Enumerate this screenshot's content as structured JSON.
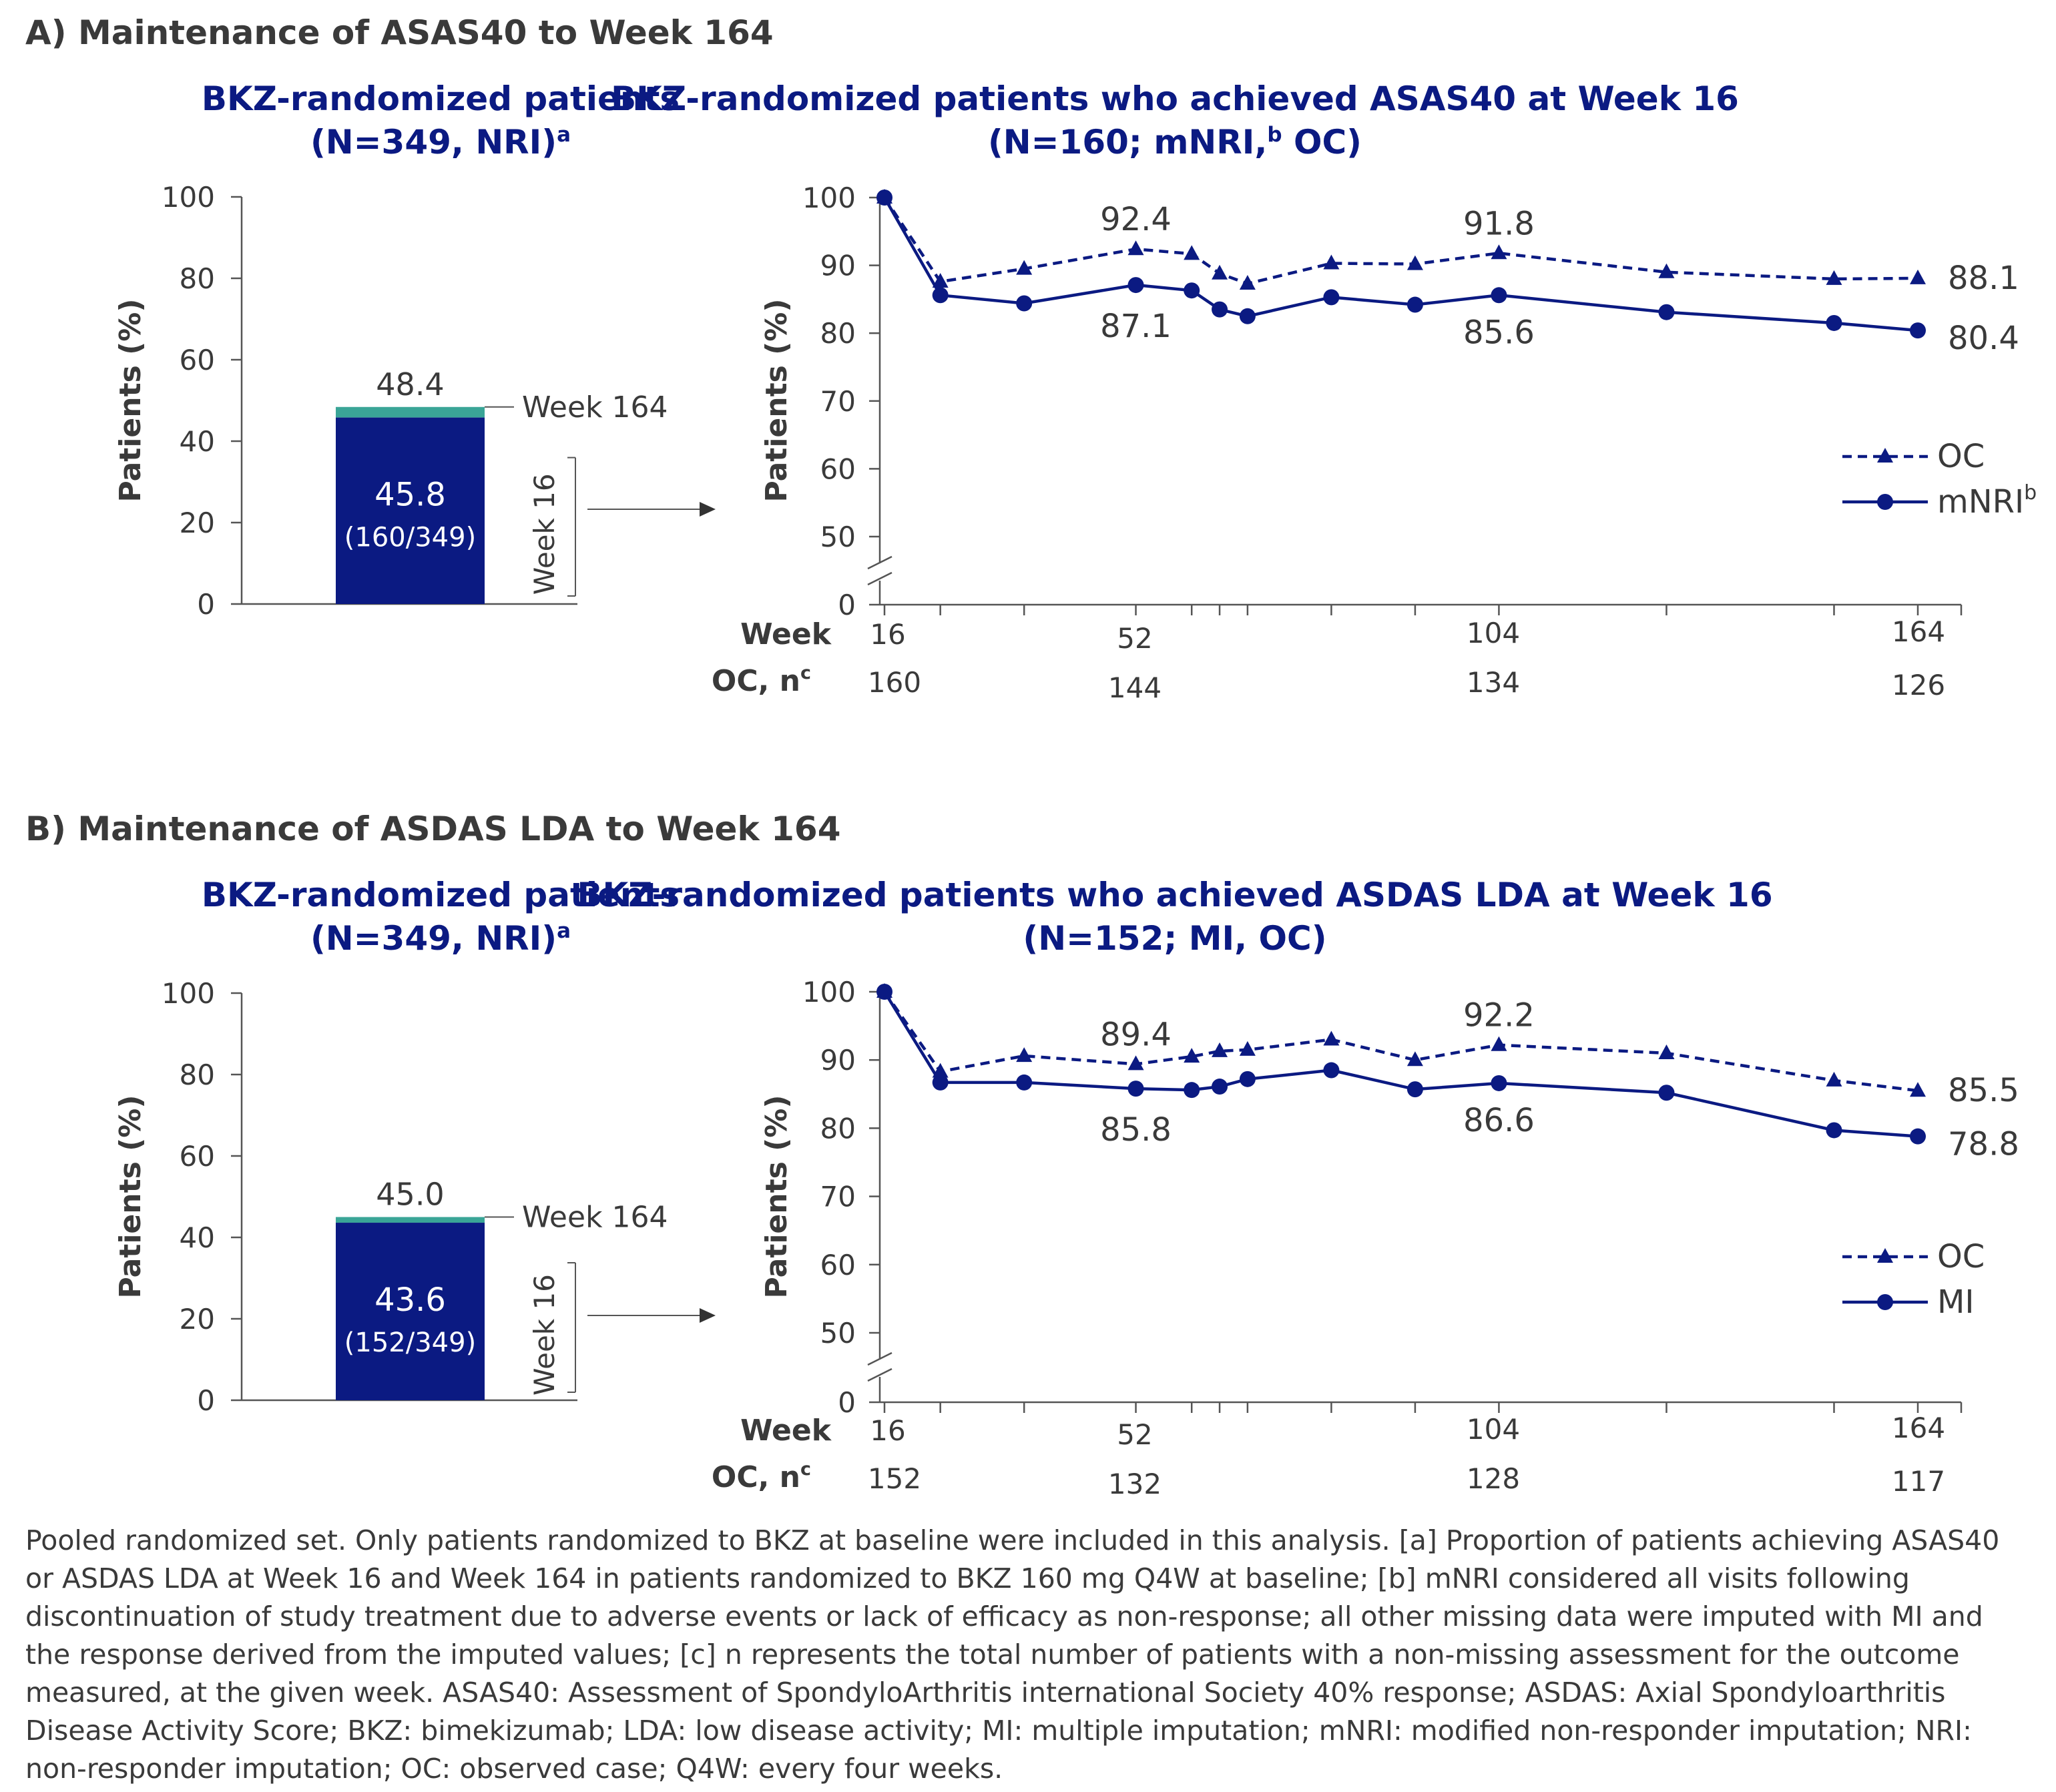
{
  "colors": {
    "navy": "#0b1a82",
    "teal": "#3aa597",
    "text": "#3a3a3a",
    "axis": "#555555"
  },
  "panels": [
    {
      "section_title": "A) Maintenance of ASAS40 to Week 164",
      "bar": {
        "title_line1": "BKZ-randomized patients",
        "title_line2": "(N=349, NRI)",
        "title_sup": "a",
        "ylabel": "Patients (%)",
        "yticks": [
          "100",
          "80",
          "60",
          "40",
          "20",
          "0"
        ],
        "ylim": [
          0,
          100
        ],
        "week16_value": 45.8,
        "week164_value": 48.4,
        "week16_label": "45.8",
        "week16_fraction": "(160/349)",
        "week164_label": "48.4",
        "week164_tag": "Week 164",
        "week16_tag": "Week 16"
      },
      "line": {
        "title_line1": "BKZ-randomized patients who achieved ASAS40 at Week 16",
        "title_line2a": "(N=160; mNRI,",
        "title_sup": "b",
        "title_line2b": " OC)",
        "ylabel": "Patients (%)",
        "yticks": [
          "100",
          "90",
          "80",
          "70",
          "60",
          "50",
          "0"
        ],
        "week_label": "Week",
        "week_ticks": [
          "16",
          "52",
          "104",
          "164"
        ],
        "oc_n_label": "OC, n",
        "oc_n_sup": "c",
        "oc_n_values": [
          "160",
          "144",
          "134",
          "126"
        ],
        "legend": [
          {
            "label": "OC",
            "sup": ""
          },
          {
            "label": "mNRI",
            "sup": "b"
          }
        ],
        "annotations": {
          "oc_52": "92.4",
          "oc_104": "91.8",
          "oc_164": "88.1",
          "main_52": "87.1",
          "main_104": "85.6",
          "main_164": "80.4"
        }
      }
    },
    {
      "section_title": "B) Maintenance of ASDAS LDA to Week 164",
      "bar": {
        "title_line1": "BKZ-randomized patients",
        "title_line2": "(N=349, NRI)",
        "title_sup": "a",
        "ylabel": "Patients (%)",
        "yticks": [
          "100",
          "80",
          "60",
          "40",
          "20",
          "0"
        ],
        "ylim": [
          0,
          100
        ],
        "week16_value": 43.6,
        "week164_value": 45.0,
        "week16_label": "43.6",
        "week16_fraction": "(152/349)",
        "week164_label": "45.0",
        "week164_tag": "Week 164",
        "week16_tag": "Week 16"
      },
      "line": {
        "title_line1": "BKZ-randomized patients who achieved ASDAS LDA at Week 16",
        "title_line2a": "(N=152; MI, OC)",
        "title_sup": "",
        "title_line2b": "",
        "ylabel": "Patients (%)",
        "yticks": [
          "100",
          "90",
          "80",
          "70",
          "60",
          "50",
          "0"
        ],
        "week_label": "Week",
        "week_ticks": [
          "16",
          "52",
          "104",
          "164"
        ],
        "oc_n_label": "OC, n",
        "oc_n_sup": "c",
        "oc_n_values": [
          "152",
          "132",
          "128",
          "117"
        ],
        "legend": [
          {
            "label": "OC",
            "sup": ""
          },
          {
            "label": "MI",
            "sup": ""
          }
        ],
        "annotations": {
          "oc_52": "89.4",
          "oc_104": "92.2",
          "oc_164": "85.5",
          "main_52": "85.8",
          "main_104": "86.6",
          "main_164": "78.8"
        }
      }
    }
  ],
  "chart_data": [
    {
      "type": "bar",
      "title": "BKZ-randomized patients (N=349, NRI)a",
      "ylabel": "Patients (%)",
      "ylim": [
        0,
        100
      ],
      "categories": [
        "Week 16",
        "Week 164"
      ],
      "values": [
        45.8,
        48.4
      ]
    },
    {
      "type": "line",
      "title": "BKZ-randomized patients who achieved ASAS40 at Week 16 (N=160; mNRI,b OC)",
      "xlabel": "Week",
      "ylabel": "Patients (%)",
      "ylim": [
        0,
        100
      ],
      "x_ticks": [
        16,
        52,
        104,
        164
      ],
      "legend_position": "right",
      "series": [
        {
          "name": "OC",
          "style": "dashed-triangle",
          "x": [
            16,
            24,
            36,
            52,
            60,
            64,
            68,
            80,
            92,
            104,
            128,
            152,
            164
          ],
          "values": [
            100,
            87.6,
            89.5,
            92.4,
            91.7,
            88.8,
            87.3,
            90.3,
            90.2,
            91.8,
            89.0,
            88.0,
            88.1
          ]
        },
        {
          "name": "mNRI",
          "style": "solid-circle",
          "x": [
            16,
            24,
            36,
            52,
            60,
            64,
            68,
            80,
            92,
            104,
            128,
            152,
            164
          ],
          "values": [
            100,
            85.6,
            84.4,
            87.1,
            86.3,
            83.5,
            82.5,
            85.3,
            84.2,
            85.6,
            83.1,
            81.5,
            80.4
          ]
        }
      ],
      "oc_n": {
        "x": [
          16,
          52,
          104,
          164
        ],
        "values": [
          160,
          144,
          134,
          126
        ]
      }
    },
    {
      "type": "bar",
      "title": "BKZ-randomized patients (N=349, NRI)a",
      "ylabel": "Patients (%)",
      "ylim": [
        0,
        100
      ],
      "categories": [
        "Week 16",
        "Week 164"
      ],
      "values": [
        43.6,
        45.0
      ]
    },
    {
      "type": "line",
      "title": "BKZ-randomized patients who achieved ASDAS LDA at Week 16 (N=152; MI, OC)",
      "xlabel": "Week",
      "ylabel": "Patients (%)",
      "ylim": [
        0,
        100
      ],
      "x_ticks": [
        16,
        52,
        104,
        164
      ],
      "legend_position": "right",
      "series": [
        {
          "name": "OC",
          "style": "dashed-triangle",
          "x": [
            16,
            24,
            36,
            52,
            60,
            64,
            68,
            80,
            92,
            104,
            128,
            152,
            164
          ],
          "values": [
            100,
            88.3,
            90.6,
            89.4,
            90.5,
            91.3,
            91.5,
            93.0,
            90.0,
            92.2,
            91.0,
            87.0,
            85.5
          ]
        },
        {
          "name": "MI",
          "style": "solid-circle",
          "x": [
            16,
            24,
            36,
            52,
            60,
            64,
            68,
            80,
            92,
            104,
            128,
            152,
            164
          ],
          "values": [
            100,
            86.7,
            86.7,
            85.8,
            85.6,
            86.1,
            87.2,
            88.5,
            85.7,
            86.6,
            85.2,
            79.7,
            78.8
          ]
        }
      ],
      "oc_n": {
        "x": [
          16,
          52,
          104,
          164
        ],
        "values": [
          152,
          132,
          128,
          117
        ]
      }
    }
  ],
  "footnote": "Pooled randomized set. Only patients randomized to BKZ at baseline were included in this analysis. [a] Proportion of patients achieving ASAS40 or ASDAS LDA at Week 16 and Week 164 in patients randomized to BKZ 160 mg Q4W at baseline; [b] mNRI considered all visits following discontinuation of study treatment due to adverse events or lack of efficacy as non-response; all other missing data were imputed with MI and the response derived from the imputed values; [c] n represents the total number of patients with a non-missing assessment for the outcome measured, at the given week. ASAS40: Assessment of SpondyloArthritis international Society 40% response; ASDAS: Axial Spondyloarthritis Disease Activity Score; BKZ: bimekizumab; LDA: low disease activity; MI: multiple imputation; mNRI: modified non-responder imputation; NRI: non-responder imputation; OC: observed case; Q4W: every four weeks."
}
